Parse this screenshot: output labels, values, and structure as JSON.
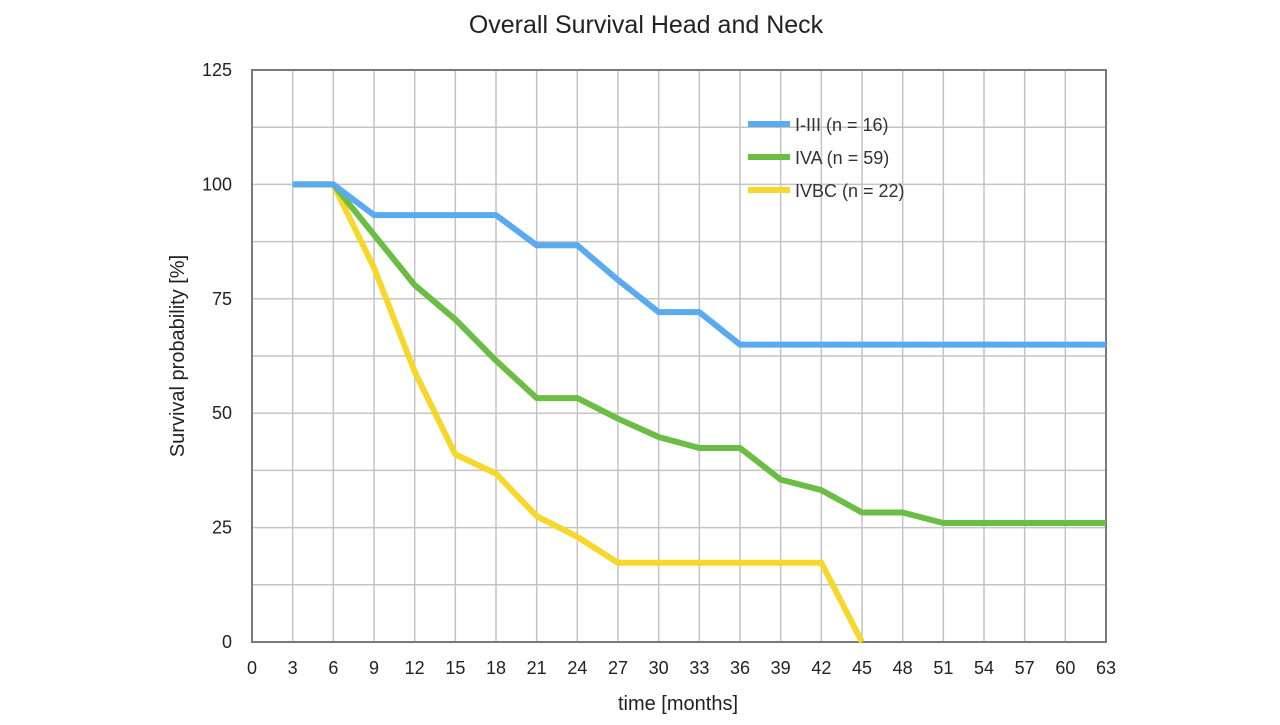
{
  "chart_data": {
    "type": "line",
    "title": "Overall Survival Head and Neck",
    "xlabel": "time [months]",
    "ylabel": "Survival probability [%]",
    "xlim": [
      0,
      63
    ],
    "ylim": [
      0,
      125
    ],
    "x_ticks": [
      0,
      3,
      6,
      9,
      12,
      15,
      18,
      21,
      24,
      27,
      30,
      33,
      36,
      39,
      42,
      45,
      48,
      51,
      54,
      57,
      60,
      63
    ],
    "y_ticks": [
      0,
      25,
      50,
      75,
      100,
      125
    ],
    "y_minor_gridlines": [
      12.5,
      37.5,
      62.5,
      87.5,
      112.5
    ],
    "grid": true,
    "legend_position": "top-right",
    "series": [
      {
        "name": "I-III (n = 16)",
        "color": "#5aaaf0",
        "points": [
          [
            3,
            100
          ],
          [
            6,
            100
          ],
          [
            9,
            93.3
          ],
          [
            18,
            93.3
          ],
          [
            21,
            86.7
          ],
          [
            24,
            86.7
          ],
          [
            27,
            79.1
          ],
          [
            30,
            72.1
          ],
          [
            33,
            72.1
          ],
          [
            36,
            65
          ],
          [
            63,
            65
          ]
        ]
      },
      {
        "name": "IVA (n = 59)",
        "color": "#6cbd45",
        "points": [
          [
            3,
            100
          ],
          [
            6,
            100
          ],
          [
            9,
            89
          ],
          [
            12,
            78
          ],
          [
            15,
            70.5
          ],
          [
            18,
            61.5
          ],
          [
            21,
            53.3
          ],
          [
            24,
            53.3
          ],
          [
            27,
            48.8
          ],
          [
            30,
            44.8
          ],
          [
            33,
            42.4
          ],
          [
            36,
            42.4
          ],
          [
            39,
            35.5
          ],
          [
            42,
            33.2
          ],
          [
            45,
            28.3
          ],
          [
            48,
            28.3
          ],
          [
            51,
            26
          ],
          [
            63,
            26
          ]
        ]
      },
      {
        "name": "IVBC (n = 22)",
        "color": "#f5d82b",
        "points": [
          [
            3,
            100
          ],
          [
            6,
            100
          ],
          [
            9,
            81.8
          ],
          [
            12,
            59.1
          ],
          [
            15,
            41
          ],
          [
            18,
            36.8
          ],
          [
            21,
            27.5
          ],
          [
            24,
            23
          ],
          [
            27,
            17.3
          ],
          [
            42,
            17.3
          ],
          [
            45,
            0
          ]
        ]
      }
    ]
  }
}
